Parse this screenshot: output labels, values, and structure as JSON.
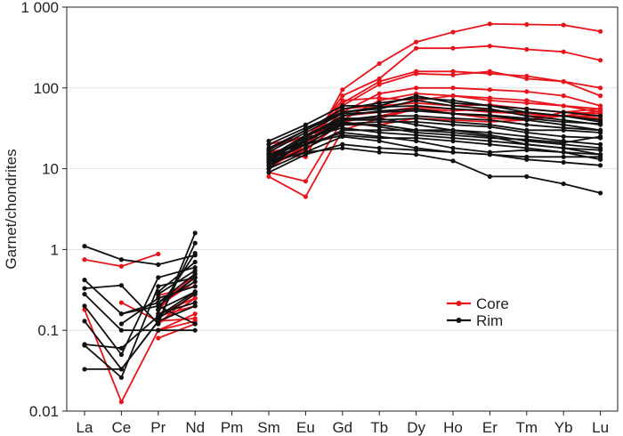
{
  "chart_data": {
    "type": "line",
    "yscale": "log",
    "ylim": [
      0.01,
      1000
    ],
    "ylabel": "Garnet/chondrites",
    "xlabel": "",
    "grid": "horizontal",
    "categories": [
      "La",
      "Ce",
      "Pr",
      "Nd",
      "Pm",
      "Sm",
      "Eu",
      "Gd",
      "Tb",
      "Dy",
      "Ho",
      "Er",
      "Tm",
      "Yb",
      "Lu"
    ],
    "ytick_labels": [
      "0.01",
      "0.1",
      "1",
      "10",
      "100",
      "1 000"
    ],
    "ytick_values": [
      0.01,
      0.1,
      1,
      10,
      100,
      1000
    ],
    "legend": {
      "position": "lower-right",
      "entries": [
        {
          "name": "Core",
          "color": "#e8141c"
        },
        {
          "name": "Rim",
          "color": "#111111"
        }
      ]
    },
    "series": [
      {
        "name": "Core",
        "color": "#e8141c",
        "values": [
          0.75,
          0.62,
          0.88,
          null,
          null,
          null,
          null,
          null,
          null,
          null,
          null,
          null,
          null,
          null,
          null
        ]
      },
      {
        "name": "Core",
        "color": "#e8141c",
        "values": [
          0.18,
          0.013,
          0.1,
          0.16,
          null,
          8,
          4.5,
          30,
          42,
          55,
          48,
          42,
          40,
          50,
          55
        ]
      },
      {
        "name": "Core",
        "color": "#e8141c",
        "values": [
          null,
          0.22,
          0.13,
          0.14,
          null,
          15,
          14,
          95,
          200,
          370,
          490,
          620,
          610,
          600,
          500
        ]
      },
      {
        "name": "Core",
        "color": "#e8141c",
        "values": [
          null,
          null,
          0.16,
          0.25,
          null,
          12,
          18,
          80,
          130,
          310,
          310,
          330,
          300,
          280,
          220
        ]
      },
      {
        "name": "Core",
        "color": "#e8141c",
        "values": [
          null,
          null,
          0.27,
          0.35,
          null,
          20,
          25,
          60,
          110,
          150,
          145,
          160,
          130,
          120,
          100
        ]
      },
      {
        "name": "Core",
        "color": "#e8141c",
        "values": [
          null,
          null,
          0.08,
          0.12,
          null,
          14,
          18,
          65,
          120,
          160,
          160,
          150,
          140,
          120,
          80
        ]
      },
      {
        "name": "Core",
        "color": "#e8141c",
        "values": [
          null,
          null,
          0.2,
          0.4,
          null,
          10,
          20,
          50,
          85,
          100,
          100,
          95,
          90,
          80,
          60
        ]
      },
      {
        "name": "Core",
        "color": "#e8141c",
        "values": [
          null,
          null,
          0.1,
          0.13,
          null,
          9,
          7,
          40,
          70,
          85,
          80,
          75,
          70,
          60,
          50
        ]
      },
      {
        "name": "Core",
        "color": "#e8141c",
        "values": [
          null,
          null,
          0.12,
          0.3,
          null,
          15,
          22,
          70,
          75,
          70,
          80,
          70,
          65,
          60,
          55
        ]
      },
      {
        "name": "Core",
        "color": "#e8141c",
        "values": [
          null,
          null,
          0.18,
          0.5,
          null,
          18,
          25,
          55,
          60,
          65,
          60,
          62,
          55,
          50,
          48
        ]
      },
      {
        "name": "Core",
        "color": "#e8141c",
        "values": [
          null,
          null,
          0.15,
          0.2,
          null,
          11,
          17,
          38,
          45,
          55,
          52,
          55,
          45,
          45,
          45
        ]
      },
      {
        "name": "Core",
        "color": "#e8141c",
        "values": [
          null,
          null,
          0.22,
          0.45,
          null,
          16,
          20,
          45,
          50,
          58,
          55,
          50,
          48,
          45,
          42
        ]
      },
      {
        "name": "Core",
        "color": "#e8141c",
        "values": [
          null,
          null,
          0.12,
          0.25,
          null,
          13,
          20,
          35,
          35,
          42,
          40,
          38,
          40,
          45,
          52
        ]
      },
      {
        "name": "Rim",
        "color": "#111111",
        "values": [
          1.1,
          0.75,
          0.65,
          0.85,
          null,
          18,
          30,
          55,
          65,
          75,
          70,
          60,
          55,
          50,
          45
        ]
      },
      {
        "name": "Rim",
        "color": "#111111",
        "values": [
          0.42,
          0.16,
          0.2,
          0.12,
          null,
          20,
          32,
          50,
          55,
          70,
          60,
          55,
          45,
          40,
          35
        ]
      },
      {
        "name": "Rim",
        "color": "#111111",
        "values": [
          0.33,
          0.36,
          0.12,
          1.6,
          null,
          22,
          35,
          60,
          60,
          80,
          65,
          60,
          50,
          45,
          38
        ]
      },
      {
        "name": "Rim",
        "color": "#111111",
        "values": [
          0.28,
          0.1,
          0.1,
          0.1,
          null,
          12,
          25,
          45,
          52,
          55,
          48,
          45,
          40,
          35,
          30
        ]
      },
      {
        "name": "Rim",
        "color": "#111111",
        "values": [
          0.2,
          0.05,
          0.45,
          0.6,
          null,
          14,
          22,
          40,
          40,
          42,
          38,
          35,
          30,
          30,
          28
        ]
      },
      {
        "name": "Rim",
        "color": "#111111",
        "values": [
          0.13,
          0.033,
          0.13,
          1.2,
          null,
          13,
          20,
          35,
          35,
          30,
          30,
          28,
          25,
          22,
          20
        ]
      },
      {
        "name": "Rim",
        "color": "#111111",
        "values": [
          0.067,
          0.06,
          0.15,
          0.3,
          null,
          11,
          18,
          30,
          30,
          30,
          28,
          25,
          20,
          18,
          15
        ]
      },
      {
        "name": "Rim",
        "color": "#111111",
        "values": [
          0.065,
          0.026,
          0.35,
          0.45,
          null,
          10,
          16,
          25,
          22,
          18,
          16,
          15,
          13,
          12,
          11
        ]
      },
      {
        "name": "Rim",
        "color": "#111111",
        "values": [
          0.033,
          0.033,
          0.13,
          0.2,
          null,
          9,
          15,
          20,
          18,
          17,
          16,
          15,
          14,
          14,
          14
        ]
      },
      {
        "name": "Rim",
        "color": "#111111",
        "values": [
          null,
          0.12,
          0.25,
          0.35,
          null,
          15,
          20,
          28,
          25,
          22,
          18,
          16,
          17,
          16,
          15
        ]
      },
      {
        "name": "Rim",
        "color": "#111111",
        "values": [
          null,
          0.16,
          0.22,
          0.5,
          null,
          12,
          16,
          18,
          16,
          15,
          12.5,
          8,
          8,
          6.5,
          5
        ]
      },
      {
        "name": "Rim",
        "color": "#111111",
        "values": [
          null,
          null,
          0.18,
          0.9,
          null,
          13,
          25,
          40,
          45,
          45,
          42,
          40,
          35,
          32,
          30
        ]
      },
      {
        "name": "Rim",
        "color": "#111111",
        "values": [
          null,
          null,
          0.3,
          0.7,
          null,
          16,
          28,
          48,
          50,
          52,
          48,
          46,
          42,
          38,
          36
        ]
      },
      {
        "name": "Rim",
        "color": "#111111",
        "values": [
          null,
          null,
          0.14,
          0.28,
          null,
          11,
          22,
          36,
          38,
          38,
          35,
          33,
          28,
          25,
          24
        ]
      },
      {
        "name": "Rim",
        "color": "#111111",
        "values": [
          null,
          null,
          0.22,
          0.4,
          null,
          14,
          26,
          42,
          42,
          35,
          30,
          26,
          22,
          20,
          18
        ]
      },
      {
        "name": "Rim",
        "color": "#111111",
        "values": [
          null,
          null,
          0.16,
          0.22,
          null,
          10,
          24,
          32,
          28,
          26,
          24,
          22,
          20,
          18,
          17
        ]
      },
      {
        "name": "Rim",
        "color": "#111111",
        "values": [
          null,
          null,
          0.28,
          0.55,
          null,
          17,
          30,
          50,
          58,
          60,
          55,
          52,
          50,
          45,
          40
        ]
      },
      {
        "name": "Rim",
        "color": "#111111",
        "values": [
          null,
          null,
          0.18,
          0.3,
          null,
          12,
          20,
          26,
          24,
          24,
          22,
          20,
          18,
          16,
          13
        ]
      },
      {
        "name": "Rim",
        "color": "#111111",
        "values": [
          null,
          null,
          0.2,
          0.45,
          null,
          15,
          22,
          38,
          33,
          28,
          26,
          24,
          23,
          21,
          25
        ]
      }
    ]
  }
}
